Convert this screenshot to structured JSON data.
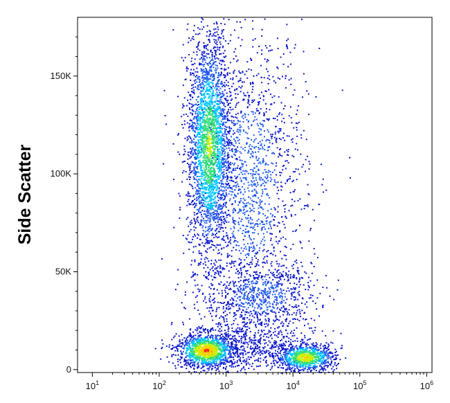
{
  "chart_data": {
    "type": "scatter",
    "subtype": "flow-cytometry density dot plot",
    "title": "",
    "xlabel": "",
    "ylabel": "Side Scatter",
    "x_scale": "log",
    "xlim": [
      6,
      1200000
    ],
    "ylim": [
      -1500,
      180000
    ],
    "x_ticks": [
      {
        "value": 10,
        "base": "10",
        "exp": "1"
      },
      {
        "value": 100,
        "base": "10",
        "exp": "2"
      },
      {
        "value": 1000,
        "base": "10",
        "exp": "3"
      },
      {
        "value": 10000,
        "base": "10",
        "exp": "4"
      },
      {
        "value": 100000,
        "base": "10",
        "exp": "5"
      },
      {
        "value": 1000000,
        "base": "10",
        "exp": "6"
      }
    ],
    "y_ticks": [
      {
        "value": 0,
        "label": "0"
      },
      {
        "value": 50000,
        "label": "50K"
      },
      {
        "value": 100000,
        "label": "100K"
      },
      {
        "value": 150000,
        "label": "150K"
      }
    ],
    "grid": false,
    "legend": "none",
    "density_colors": [
      "#0a14c8",
      "#1e5af0",
      "#00c8ff",
      "#33dd77",
      "#c8f000",
      "#ffd000",
      "#ff2000"
    ],
    "populations": [
      {
        "name": "",
        "x_center": 550,
        "y_center": 115000,
        "x_spread_decades": 0.16,
        "y_spread": 28000,
        "points": 2600,
        "peak_level": 4
      },
      {
        "name": "",
        "x_center": 2200,
        "y_center": 95000,
        "x_spread_decades": 0.42,
        "y_spread": 40000,
        "points": 1700,
        "peak_level": 1
      },
      {
        "name": "",
        "x_center": 500,
        "y_center": 10000,
        "x_spread_decades": 0.22,
        "y_spread": 4500,
        "points": 1300,
        "peak_level": 6
      },
      {
        "name": "",
        "x_center": 15000,
        "y_center": 6500,
        "x_spread_decades": 0.22,
        "y_spread": 3500,
        "points": 900,
        "peak_level": 5
      },
      {
        "name": "",
        "x_center": 3200,
        "y_center": 38000,
        "x_spread_decades": 0.42,
        "y_spread": 9000,
        "points": 700,
        "peak_level": 1
      },
      {
        "name": "",
        "x_center": 2500,
        "y_center": 12000,
        "x_spread_decades": 0.45,
        "y_spread": 7000,
        "points": 500,
        "peak_level": 0
      }
    ]
  }
}
